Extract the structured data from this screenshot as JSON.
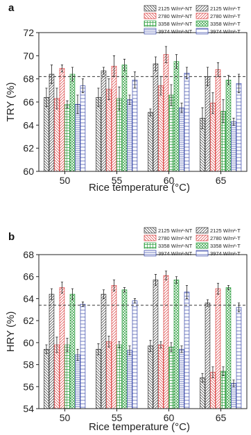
{
  "chart_data": [
    {
      "type": "bar",
      "panel_label": "a",
      "xlabel": "Rice temperature (°C)",
      "ylabel": "TRY (%)",
      "ylim": [
        60,
        72
      ],
      "yticks": [
        60,
        62,
        64,
        66,
        68,
        70,
        72
      ],
      "categories": [
        "50",
        "55",
        "60",
        "65"
      ],
      "reference_line": 68.2,
      "series": [
        {
          "name": "2125 W/m²-NT",
          "color": "#333333",
          "pattern": "diag-back",
          "values": [
            66.4,
            66.4,
            65.1,
            64.6
          ],
          "errors": [
            0.8,
            0.8,
            0.3,
            0.9
          ]
        },
        {
          "name": "2125 W/m²-T",
          "color": "#333333",
          "pattern": "diag-fwd",
          "values": [
            68.4,
            68.7,
            69.3,
            68.2
          ],
          "errors": [
            0.8,
            0.3,
            0.6,
            0.8
          ]
        },
        {
          "name": "2780 W/m²-NT",
          "color": "#d93b3b",
          "pattern": "diag-back",
          "values": [
            66.3,
            67.1,
            67.4,
            65.9
          ],
          "errors": [
            0.9,
            0.9,
            0.8,
            0.9
          ]
        },
        {
          "name": "2780 W/m²-T",
          "color": "#d93b3b",
          "pattern": "diag-fwd",
          "values": [
            68.9,
            69.1,
            70.1,
            68.8
          ],
          "errors": [
            0.3,
            0.9,
            0.7,
            0.6
          ]
        },
        {
          "name": "3358 W/m²-NT",
          "color": "#2a9d3c",
          "pattern": "grid",
          "values": [
            65.8,
            66.3,
            66.6,
            65.2
          ],
          "errors": [
            0.3,
            1.0,
            0.9,
            1.0
          ]
        },
        {
          "name": "3358 W/m²-T",
          "color": "#2a9d3c",
          "pattern": "crosshatch",
          "values": [
            68.4,
            69.2,
            69.5,
            67.9
          ],
          "errors": [
            0.6,
            0.5,
            0.6,
            0.4
          ]
        },
        {
          "name": "3974 W/m²-NT",
          "color": "#3545a8",
          "pattern": "hlines",
          "values": [
            65.8,
            66.2,
            65.5,
            64.3
          ],
          "errors": [
            0.8,
            0.4,
            0.4,
            0.3
          ]
        },
        {
          "name": "3974 W/m²-T",
          "color": "#3545a8",
          "pattern": "hlines-sparse",
          "values": [
            67.4,
            67.9,
            68.5,
            67.6
          ],
          "errors": [
            0.6,
            0.7,
            0.5,
            0.8
          ]
        }
      ]
    },
    {
      "type": "bar",
      "panel_label": "b",
      "xlabel": "Rice temperature (°C)",
      "ylabel": "HRY (%)",
      "ylim": [
        54,
        68
      ],
      "yticks": [
        54,
        56,
        58,
        60,
        62,
        64,
        66,
        68
      ],
      "categories": [
        "50",
        "55",
        "60",
        "65"
      ],
      "reference_line": 63.4,
      "series": [
        {
          "name": "2125 W/m²-NT",
          "color": "#333333",
          "pattern": "diag-back",
          "values": [
            59.4,
            59.4,
            59.7,
            56.8
          ],
          "errors": [
            0.4,
            0.5,
            0.5,
            0.4
          ]
        },
        {
          "name": "2125 W/m²-T",
          "color": "#333333",
          "pattern": "diag-fwd",
          "values": [
            64.4,
            64.4,
            65.7,
            63.6
          ],
          "errors": [
            0.5,
            0.4,
            0.5,
            0.3
          ]
        },
        {
          "name": "2780 W/m²-NT",
          "color": "#d93b3b",
          "pattern": "diag-back",
          "values": [
            59.8,
            60.1,
            59.8,
            57.3
          ],
          "errors": [
            0.7,
            0.5,
            0.3,
            0.5
          ]
        },
        {
          "name": "2780 W/m²-T",
          "color": "#d93b3b",
          "pattern": "diag-fwd",
          "values": [
            65.0,
            65.2,
            66.1,
            64.9
          ],
          "errors": [
            0.5,
            0.5,
            0.4,
            0.5
          ]
        },
        {
          "name": "3358 W/m²-NT",
          "color": "#2a9d3c",
          "pattern": "grid",
          "values": [
            59.8,
            59.8,
            59.6,
            57.4
          ],
          "errors": [
            0.6,
            0.3,
            0.4,
            0.4
          ]
        },
        {
          "name": "3358 W/m²-T",
          "color": "#2a9d3c",
          "pattern": "crosshatch",
          "values": [
            64.4,
            64.8,
            65.7,
            65.0
          ],
          "errors": [
            0.5,
            0.2,
            0.3,
            0.2
          ]
        },
        {
          "name": "3974 W/m²-NT",
          "color": "#3545a8",
          "pattern": "hlines",
          "values": [
            58.9,
            59.3,
            59.4,
            56.3
          ],
          "errors": [
            0.5,
            0.4,
            0.3,
            0.3
          ]
        },
        {
          "name": "3974 W/m²-T",
          "color": "#3545a8",
          "pattern": "hlines-sparse",
          "values": [
            63.5,
            63.8,
            64.6,
            63.2
          ],
          "errors": [
            0.2,
            0.2,
            0.6,
            0.4
          ]
        }
      ]
    }
  ]
}
